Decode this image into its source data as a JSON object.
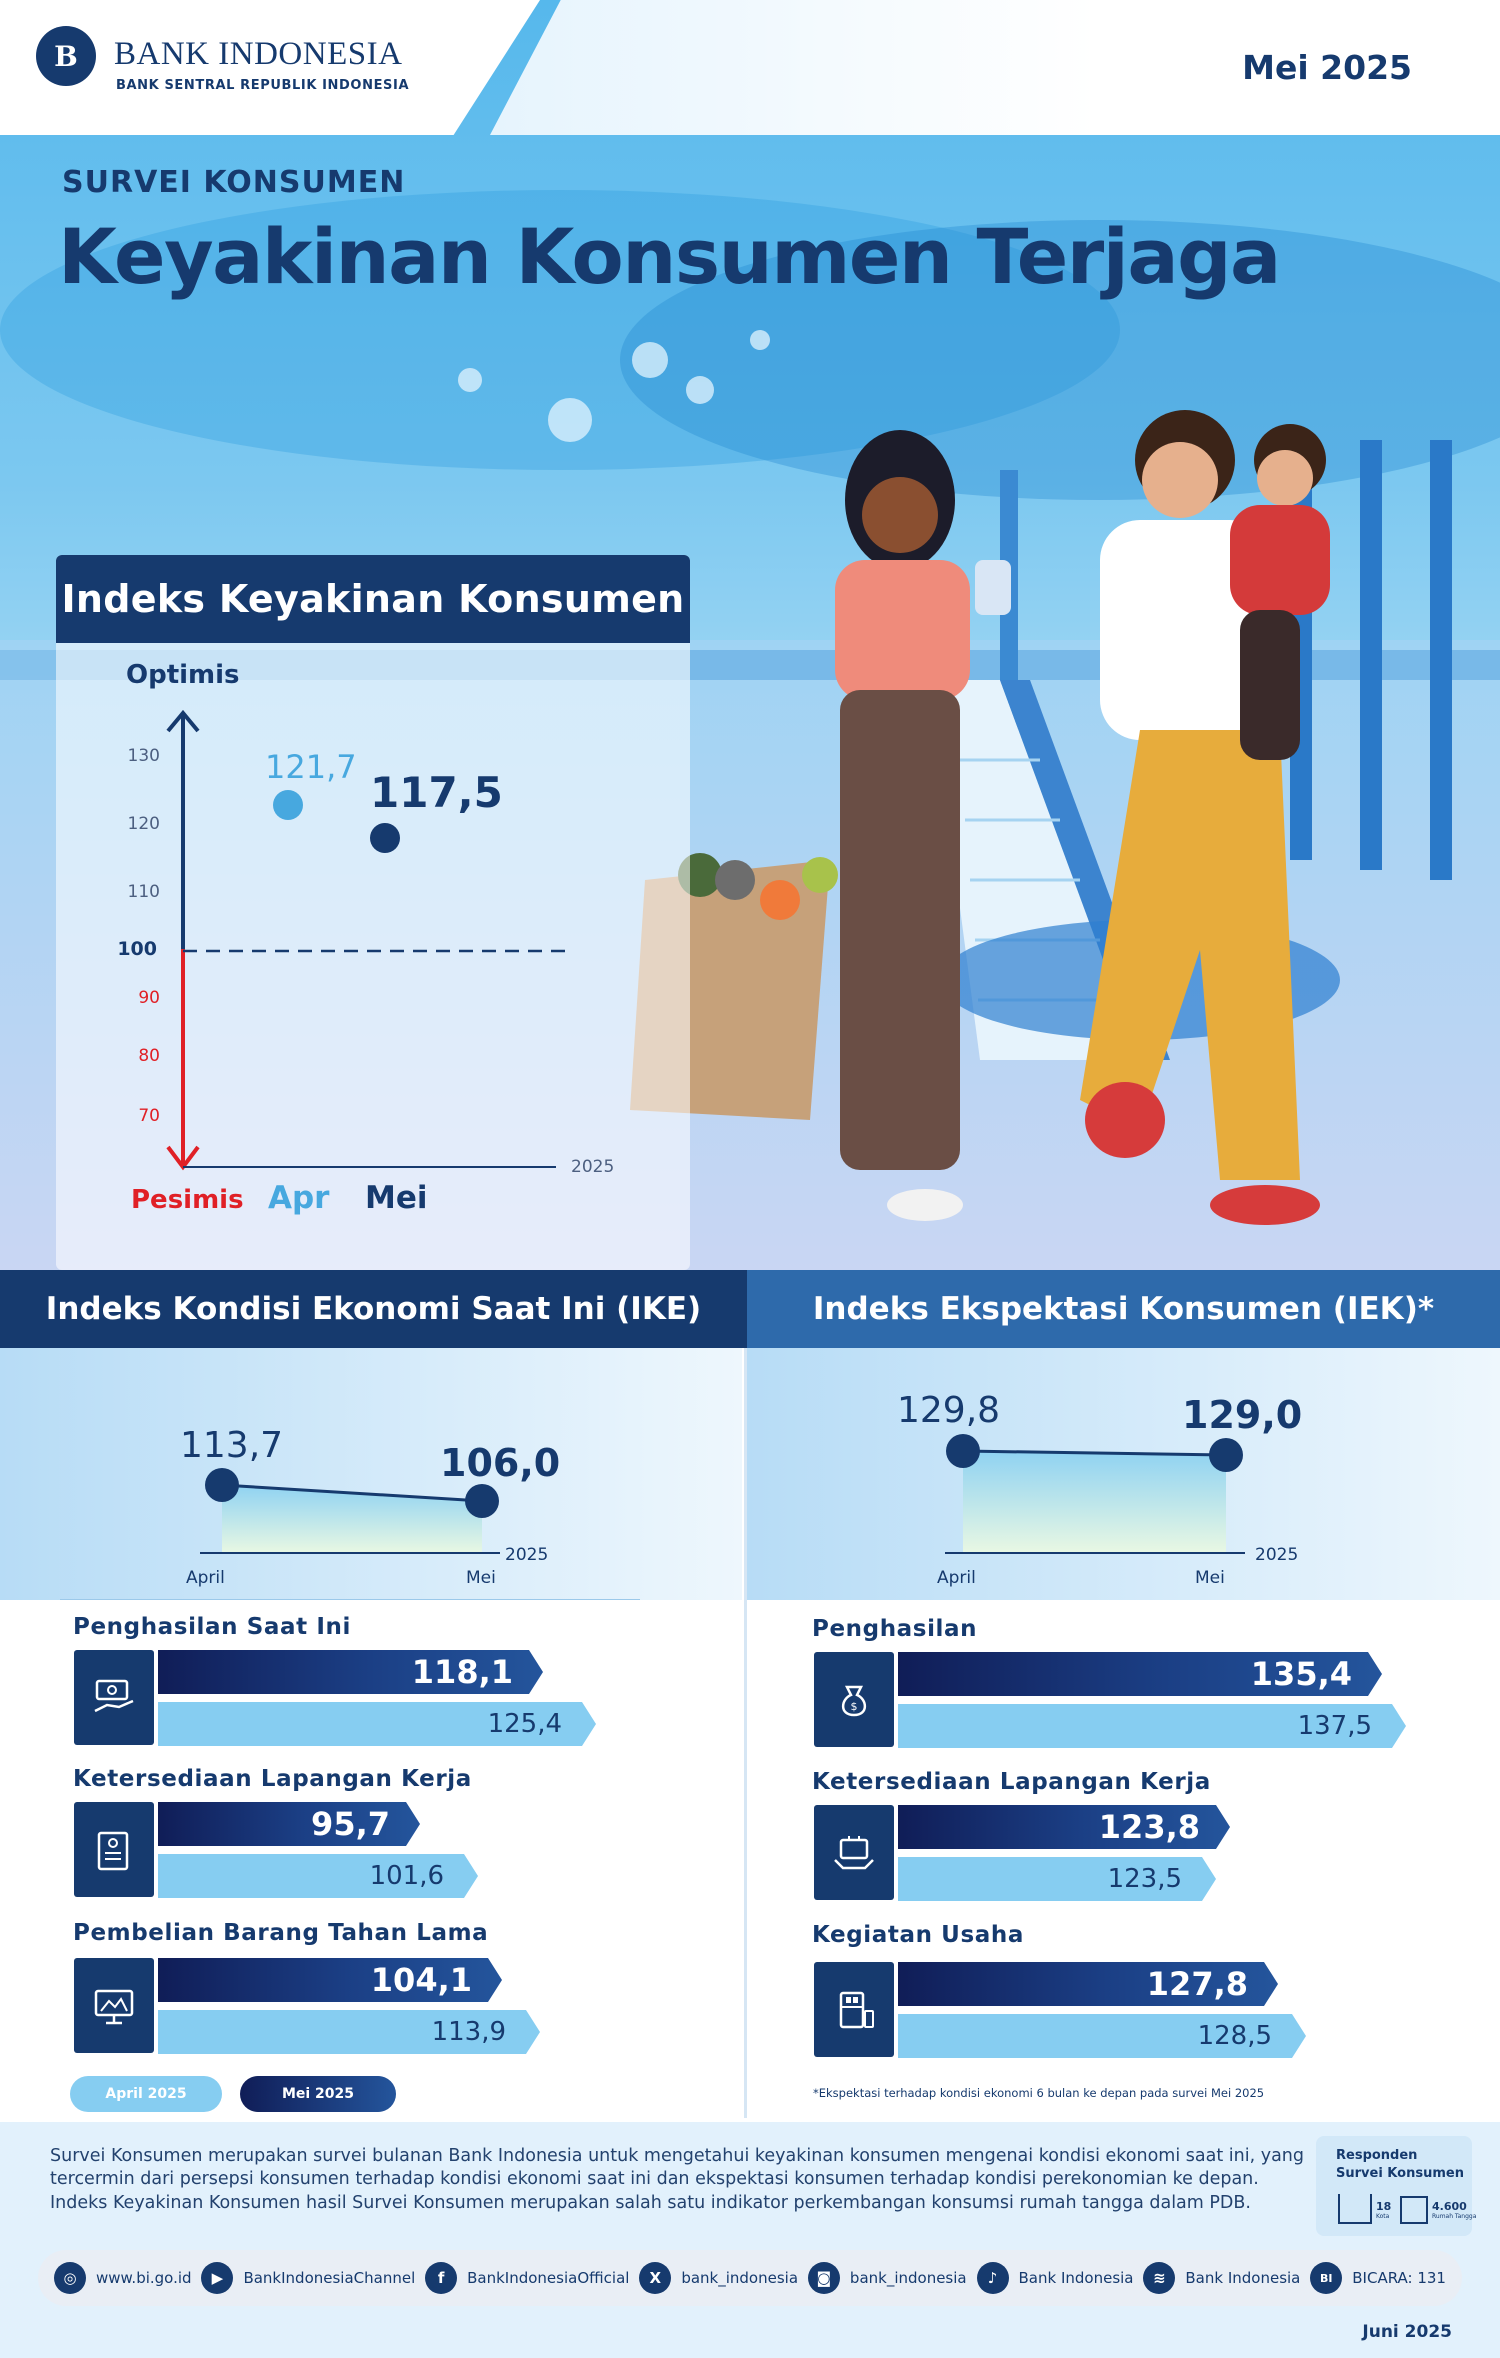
{
  "brand": {
    "name": "BANK INDONESIA",
    "tagline": "BANK SENTRAL REPUBLIK INDONESIA",
    "period": "Mei 2025"
  },
  "hero": {
    "kicker": "SURVEI KONSUMEN",
    "title": "Keyakinan Konsumen Terjaga"
  },
  "ikk": {
    "title": "Indeks Keyakinan Konsumen",
    "optimis_label": "Optimis",
    "pesimis_label": "Pesimis",
    "year_label": "2025",
    "ticks": [
      "130",
      "120",
      "110",
      "100",
      "90",
      "80",
      "70"
    ],
    "months": [
      "Apr",
      "Mei"
    ],
    "value_apr": "121,7",
    "value_mei": "117,5"
  },
  "ike": {
    "title": "Indeks Kondisi Ekonomi Saat Ini (IKE)",
    "value_apr": "113,7",
    "value_mei": "106,0",
    "month_apr": "April",
    "month_mei": "Mei",
    "year": "2025",
    "items": [
      {
        "label": "Penghasilan Saat Ini",
        "mei": "118,1",
        "apr": "125,4",
        "icon": "cash-hand-icon"
      },
      {
        "label": "Ketersediaan Lapangan Kerja",
        "mei": "95,7",
        "apr": "101,6",
        "icon": "clipboard-icon"
      },
      {
        "label": "Pembelian Barang Tahan Lama",
        "mei": "104,1",
        "apr": "113,9",
        "icon": "tv-icon"
      }
    ],
    "legend_apr": "April 2025",
    "legend_mei": "Mei 2025"
  },
  "iek": {
    "title": "Indeks Ekspektasi Konsumen (IEK)*",
    "value_apr": "129,8",
    "value_mei": "129,0",
    "month_apr": "April",
    "month_mei": "Mei",
    "year": "2025",
    "items": [
      {
        "label": "Penghasilan",
        "mei": "135,4",
        "apr": "137,5",
        "icon": "money-bag-icon"
      },
      {
        "label": "Ketersediaan Lapangan Kerja",
        "mei": "123,8",
        "apr": "123,5",
        "icon": "briefcase-hands-icon"
      },
      {
        "label": "Kegiatan Usaha",
        "mei": "127,8",
        "apr": "128,5",
        "icon": "shop-icon"
      }
    ],
    "footnote": "*Ekspektasi terhadap kondisi ekonomi 6 bulan ke depan pada survei Mei 2025"
  },
  "footer": {
    "description": "Survei Konsumen merupakan survei bulanan Bank Indonesia untuk mengetahui keyakinan konsumen mengenai kondisi ekonomi saat ini, yang tercermin dari persepsi konsumen terhadap kondisi ekonomi saat ini dan ekspektasi konsumen terhadap kondisi perekonomian ke depan. Indeks Keyakinan Konsumen hasil Survei Konsumen merupakan salah satu indikator perkembangan konsumsi rumah tangga dalam PDB.",
    "respondents_title_1": "Responden",
    "respondents_title_2": "Survei Konsumen",
    "cities": "18",
    "cities_label": "Kota",
    "households": "4.600",
    "households_label": "Rumah Tangga",
    "social": [
      {
        "icon": "globe-icon",
        "glyph": "◎",
        "label": "www.bi.go.id"
      },
      {
        "icon": "youtube-icon",
        "glyph": "▶",
        "label": "BankIndonesiaChannel"
      },
      {
        "icon": "facebook-icon",
        "glyph": "f",
        "label": "BankIndonesiaOfficial"
      },
      {
        "icon": "x-icon",
        "glyph": "X",
        "label": "bank_indonesia"
      },
      {
        "icon": "instagram-icon",
        "glyph": "◙",
        "label": "bank_indonesia"
      },
      {
        "icon": "tiktok-icon",
        "glyph": "♪",
        "label": "Bank Indonesia"
      },
      {
        "icon": "spotify-icon",
        "glyph": "≋",
        "label": "Bank Indonesia"
      },
      {
        "icon": "bicara-icon",
        "glyph": "BI",
        "label": "BICARA: 131"
      }
    ],
    "published": "Juni 2025"
  }
}
